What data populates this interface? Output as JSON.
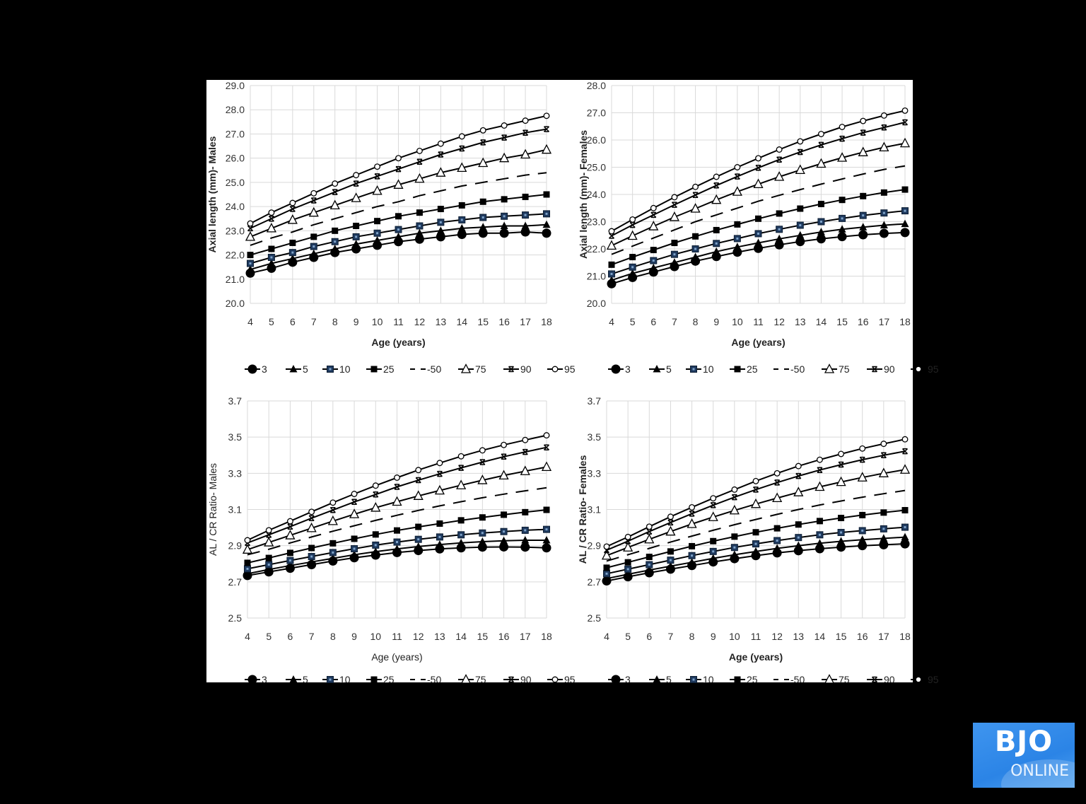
{
  "chart_data": [
    {
      "id": "al_males",
      "type": "line",
      "title": "",
      "xlabel": "Age (years)",
      "ylabel": "Axial length (mm)- Males",
      "ylabel_bold": true,
      "xlabel_bold": true,
      "x": [
        4,
        5,
        6,
        7,
        8,
        9,
        10,
        11,
        12,
        13,
        14,
        15,
        16,
        17,
        18
      ],
      "ylim": [
        20.0,
        29.0
      ],
      "yticks": [
        "20.0",
        "21.0",
        "22.0",
        "23.0",
        "24.0",
        "25.0",
        "26.0",
        "27.0",
        "28.0",
        "29.0"
      ],
      "ytick_values": [
        20,
        21,
        22,
        23,
        24,
        25,
        26,
        27,
        28,
        29
      ],
      "grid": true,
      "legend_position": "bottom",
      "series": [
        {
          "name": "3",
          "marker": "circle",
          "values": [
            21.25,
            21.45,
            21.7,
            21.9,
            22.1,
            22.25,
            22.4,
            22.55,
            22.65,
            22.75,
            22.85,
            22.9,
            22.9,
            22.95,
            22.9
          ]
        },
        {
          "name": "5",
          "marker": "triangle",
          "values": [
            21.4,
            21.65,
            21.85,
            22.05,
            22.25,
            22.45,
            22.6,
            22.75,
            22.9,
            23.0,
            23.1,
            23.15,
            23.2,
            23.2,
            23.25
          ]
        },
        {
          "name": "10",
          "marker": "square-navy",
          "values": [
            21.65,
            21.9,
            22.1,
            22.35,
            22.55,
            22.75,
            22.9,
            23.05,
            23.2,
            23.35,
            23.45,
            23.55,
            23.6,
            23.65,
            23.7
          ]
        },
        {
          "name": "25",
          "marker": "square",
          "values": [
            22.0,
            22.25,
            22.5,
            22.75,
            23.0,
            23.2,
            23.4,
            23.6,
            23.75,
            23.9,
            24.05,
            24.2,
            24.3,
            24.4,
            24.5
          ]
        },
        {
          "name": "50",
          "marker": "dash",
          "values": [
            22.4,
            22.7,
            22.95,
            23.25,
            23.5,
            23.75,
            24.0,
            24.2,
            24.45,
            24.65,
            24.85,
            25.0,
            25.15,
            25.3,
            25.4
          ]
        },
        {
          "name": "75",
          "marker": "triangle-open",
          "values": [
            22.75,
            23.1,
            23.45,
            23.75,
            24.05,
            24.35,
            24.65,
            24.9,
            25.15,
            25.4,
            25.6,
            25.8,
            26.0,
            26.15,
            26.35
          ]
        },
        {
          "name": "90",
          "marker": "x",
          "values": [
            23.1,
            23.5,
            23.9,
            24.25,
            24.6,
            24.95,
            25.25,
            25.55,
            25.85,
            26.15,
            26.4,
            26.65,
            26.85,
            27.05,
            27.2
          ]
        },
        {
          "name": "95",
          "marker": "diamond-open",
          "values": [
            23.3,
            23.75,
            24.15,
            24.55,
            24.95,
            25.3,
            25.65,
            26.0,
            26.3,
            26.6,
            26.9,
            27.15,
            27.35,
            27.55,
            27.75
          ]
        }
      ]
    },
    {
      "id": "al_females",
      "type": "line",
      "title": "",
      "xlabel": "Age (years)",
      "ylabel": "Axial length (mm)- Females",
      "ylabel_bold": true,
      "xlabel_bold": true,
      "x": [
        4,
        5,
        6,
        7,
        8,
        9,
        10,
        11,
        12,
        13,
        14,
        15,
        16,
        17,
        18
      ],
      "ylim": [
        20.0,
        28.0
      ],
      "yticks": [
        "20.0",
        "21.0",
        "22.0",
        "23.0",
        "24.0",
        "25.0",
        "26.0",
        "27.0",
        "28.0"
      ],
      "ytick_values": [
        20,
        21,
        22,
        23,
        24,
        25,
        26,
        27,
        28
      ],
      "grid": true,
      "legend_position": "bottom",
      "series": [
        {
          "name": "3",
          "marker": "circle",
          "values": [
            20.72,
            20.95,
            21.15,
            21.35,
            21.55,
            21.72,
            21.88,
            22.02,
            22.15,
            22.27,
            22.37,
            22.45,
            22.52,
            22.57,
            22.6
          ]
        },
        {
          "name": "5",
          "marker": "triangle",
          "values": [
            20.85,
            21.1,
            21.3,
            21.5,
            21.7,
            21.9,
            22.07,
            22.22,
            22.37,
            22.5,
            22.62,
            22.72,
            22.8,
            22.87,
            22.92
          ]
        },
        {
          "name": "10",
          "marker": "square-navy",
          "values": [
            21.08,
            21.33,
            21.57,
            21.8,
            22.0,
            22.2,
            22.38,
            22.56,
            22.72,
            22.87,
            23.0,
            23.12,
            23.23,
            23.32,
            23.4
          ]
        },
        {
          "name": "25",
          "marker": "square",
          "values": [
            21.42,
            21.7,
            21.96,
            22.22,
            22.46,
            22.69,
            22.9,
            23.11,
            23.3,
            23.48,
            23.65,
            23.8,
            23.94,
            24.07,
            24.18
          ]
        },
        {
          "name": "50",
          "marker": "dash",
          "values": [
            21.8,
            22.1,
            22.4,
            22.7,
            23.0,
            23.25,
            23.5,
            23.75,
            23.97,
            24.18,
            24.38,
            24.57,
            24.75,
            24.92,
            25.05
          ]
        },
        {
          "name": "75",
          "marker": "triangle-open",
          "values": [
            22.12,
            22.48,
            22.83,
            23.17,
            23.48,
            23.8,
            24.1,
            24.38,
            24.65,
            24.9,
            25.13,
            25.35,
            25.55,
            25.73,
            25.88
          ]
        },
        {
          "name": "90",
          "marker": "x",
          "values": [
            22.48,
            22.88,
            23.25,
            23.62,
            23.98,
            24.33,
            24.66,
            24.98,
            25.28,
            25.56,
            25.82,
            26.05,
            26.27,
            26.46,
            26.65
          ]
        },
        {
          "name": "95",
          "marker": "diamond-open",
          "values": [
            22.65,
            23.08,
            23.5,
            23.9,
            24.28,
            24.65,
            25.0,
            25.33,
            25.65,
            25.95,
            26.22,
            26.48,
            26.7,
            26.9,
            27.08
          ]
        }
      ]
    },
    {
      "id": "alcr_males",
      "type": "line",
      "title": "",
      "xlabel": "Age (years)",
      "ylabel": "AL  / CR Ratio- Males",
      "ylabel_bold": false,
      "xlabel_bold": false,
      "x": [
        4,
        5,
        6,
        7,
        8,
        9,
        10,
        11,
        12,
        13,
        14,
        15,
        16,
        17,
        18
      ],
      "ylim": [
        2.5,
        3.7
      ],
      "yticks": [
        "2.5",
        "2.7",
        "2.9",
        "3.1",
        "3.3",
        "3.5",
        "3.7"
      ],
      "ytick_values": [
        2.5,
        2.7,
        2.9,
        3.1,
        3.3,
        3.5,
        3.7
      ],
      "grid": true,
      "legend_position": "bottom",
      "series": [
        {
          "name": "3",
          "marker": "circle",
          "values": [
            2.735,
            2.755,
            2.775,
            2.795,
            2.815,
            2.833,
            2.848,
            2.862,
            2.873,
            2.882,
            2.888,
            2.892,
            2.893,
            2.892,
            2.888
          ]
        },
        {
          "name": "5",
          "marker": "triangle",
          "values": [
            2.745,
            2.768,
            2.79,
            2.81,
            2.83,
            2.85,
            2.867,
            2.882,
            2.895,
            2.906,
            2.915,
            2.922,
            2.927,
            2.93,
            2.93
          ]
        },
        {
          "name": "10",
          "marker": "square-navy",
          "values": [
            2.772,
            2.795,
            2.818,
            2.84,
            2.862,
            2.883,
            2.903,
            2.92,
            2.935,
            2.948,
            2.96,
            2.97,
            2.978,
            2.985,
            2.99
          ]
        },
        {
          "name": "25",
          "marker": "square",
          "values": [
            2.805,
            2.832,
            2.86,
            2.887,
            2.913,
            2.938,
            2.962,
            2.984,
            3.004,
            3.022,
            3.04,
            3.056,
            3.071,
            3.085,
            3.098
          ]
        },
        {
          "name": "50",
          "marker": "dash",
          "values": [
            2.85,
            2.88,
            2.915,
            2.948,
            2.98,
            3.01,
            3.04,
            3.068,
            3.095,
            3.12,
            3.143,
            3.165,
            3.185,
            3.203,
            3.22
          ]
        },
        {
          "name": "75",
          "marker": "triangle-open",
          "values": [
            2.878,
            2.918,
            2.957,
            2.997,
            3.036,
            3.074,
            3.11,
            3.143,
            3.175,
            3.205,
            3.234,
            3.262,
            3.288,
            3.312,
            3.335
          ]
        },
        {
          "name": "90",
          "marker": "x",
          "values": [
            2.915,
            2.96,
            3.005,
            3.052,
            3.097,
            3.142,
            3.183,
            3.225,
            3.262,
            3.297,
            3.33,
            3.362,
            3.392,
            3.418,
            3.443
          ]
        },
        {
          "name": "95",
          "marker": "diamond-open",
          "values": [
            2.93,
            2.985,
            3.035,
            3.087,
            3.138,
            3.186,
            3.232,
            3.276,
            3.318,
            3.357,
            3.394,
            3.427,
            3.457,
            3.484,
            3.51
          ]
        }
      ]
    },
    {
      "id": "alcr_females",
      "type": "line",
      "title": "",
      "xlabel": "Age (years)",
      "ylabel": "AL  / CR Ratio- Females",
      "ylabel_bold": true,
      "xlabel_bold": true,
      "x": [
        4,
        5,
        6,
        7,
        8,
        9,
        10,
        11,
        12,
        13,
        14,
        15,
        16,
        17,
        18
      ],
      "ylim": [
        2.5,
        3.7
      ],
      "yticks": [
        "2.5",
        "2.7",
        "2.9",
        "3.1",
        "3.3",
        "3.5",
        "3.7"
      ],
      "ytick_values": [
        2.5,
        2.7,
        2.9,
        3.1,
        3.3,
        3.5,
        3.7
      ],
      "grid": true,
      "legend_position": "bottom",
      "series": [
        {
          "name": "3",
          "marker": "circle",
          "values": [
            2.705,
            2.728,
            2.75,
            2.77,
            2.79,
            2.81,
            2.828,
            2.845,
            2.86,
            2.872,
            2.883,
            2.892,
            2.9,
            2.905,
            2.91
          ]
        },
        {
          "name": "5",
          "marker": "triangle",
          "values": [
            2.718,
            2.742,
            2.765,
            2.787,
            2.808,
            2.83,
            2.85,
            2.868,
            2.885,
            2.9,
            2.913,
            2.924,
            2.933,
            2.94,
            2.947
          ]
        },
        {
          "name": "10",
          "marker": "square-navy",
          "values": [
            2.745,
            2.77,
            2.795,
            2.82,
            2.845,
            2.868,
            2.89,
            2.91,
            2.928,
            2.945,
            2.96,
            2.973,
            2.983,
            2.993,
            3.002
          ]
        },
        {
          "name": "25",
          "marker": "square",
          "values": [
            2.778,
            2.808,
            2.838,
            2.868,
            2.897,
            2.925,
            2.95,
            2.974,
            2.996,
            3.017,
            3.036,
            3.053,
            3.069,
            3.083,
            3.096
          ]
        },
        {
          "name": "50",
          "marker": "dash",
          "values": [
            2.815,
            2.85,
            2.885,
            2.92,
            2.953,
            2.985,
            3.016,
            3.045,
            3.073,
            3.1,
            3.125,
            3.147,
            3.168,
            3.187,
            3.205
          ]
        },
        {
          "name": "75",
          "marker": "triangle-open",
          "values": [
            2.845,
            2.89,
            2.935,
            2.978,
            3.02,
            3.058,
            3.095,
            3.13,
            3.163,
            3.195,
            3.225,
            3.252,
            3.277,
            3.3,
            3.32
          ]
        },
        {
          "name": "90",
          "marker": "x",
          "values": [
            2.875,
            2.925,
            2.978,
            3.028,
            3.077,
            3.124,
            3.168,
            3.21,
            3.249,
            3.285,
            3.318,
            3.348,
            3.375,
            3.4,
            3.422
          ]
        },
        {
          "name": "95",
          "marker": "diamond-open",
          "values": [
            2.895,
            2.948,
            3.005,
            3.06,
            3.112,
            3.162,
            3.21,
            3.257,
            3.3,
            3.34,
            3.375,
            3.407,
            3.437,
            3.463,
            3.488
          ]
        }
      ]
    }
  ],
  "legend": {
    "entries": [
      "3",
      "5",
      "10",
      "25",
      "-50",
      "75",
      "90",
      "95"
    ]
  },
  "colors": {
    "background": "#000000",
    "panel": "#ffffff",
    "line": "#000000",
    "grid": "#d9d9d9",
    "p10_marker": "#1f3a5f",
    "logo_blue": "#2f88ea"
  },
  "logo": {
    "line1": "BJO",
    "line2": "ONLINE"
  }
}
